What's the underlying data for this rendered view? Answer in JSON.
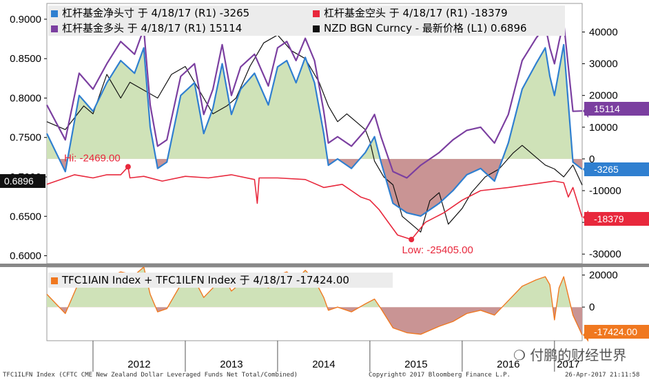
{
  "chart_data": [
    {
      "type": "line",
      "panel": "upper",
      "xlabel": "",
      "x_ticks": [
        "2012",
        "2013",
        "2014",
        "2015",
        "2016",
        "2017"
      ],
      "left_axis": {
        "ylim": [
          0.59,
          0.92
        ],
        "ticks": [
          "0.9000",
          "0.8500",
          "0.8000",
          "0.7500",
          "0.7000",
          "0.6500",
          "0.6000"
        ]
      },
      "right_axis": {
        "ylim": [
          -33000,
          49000
        ],
        "ticks": [
          "40000",
          "30000",
          "20000",
          "10000",
          "0",
          "-10000",
          "-20000",
          "-30000"
        ]
      },
      "legend": [
        "杠杆基金净头寸 于 4/18/17 (R1) -3265",
        "杠杆基金空头 于 4/18/17 (R1)   -18379",
        "杠杆基金多头 于 4/18/17 (R1)    15114",
        "NZD BGN Curncy - 最新价格 (L1) 0.6896"
      ],
      "series": [
        {
          "name": "杠杆基金净头寸",
          "axis": "right",
          "color": "#2f7fd0",
          "x": [
            2011.5,
            2011.7,
            2011.85,
            2012.0,
            2012.15,
            2012.3,
            2012.45,
            2012.55,
            2012.62,
            2012.7,
            2012.8,
            2012.95,
            2013.1,
            2013.2,
            2013.3,
            2013.4,
            2013.5,
            2013.6,
            2013.75,
            2013.9,
            2014.0,
            2014.1,
            2014.2,
            2014.3,
            2014.4,
            2014.5,
            2014.55,
            2014.65,
            2014.8,
            2014.95,
            2015.05,
            2015.12,
            2015.25,
            2015.4,
            2015.55,
            2015.75,
            2015.9,
            2016.05,
            2016.2,
            2016.35,
            2016.5,
            2016.65,
            2016.8,
            2016.9,
            2016.95,
            2017.0,
            2017.05,
            2017.1,
            2017.2,
            2017.3
          ],
          "y": [
            8000,
            -4000,
            20000,
            15000,
            24000,
            31000,
            27000,
            35000,
            10000,
            -3000,
            -1000,
            20000,
            24000,
            8000,
            16000,
            30000,
            14000,
            22000,
            27000,
            17000,
            29000,
            31000,
            24000,
            32000,
            24000,
            8000,
            -2000,
            0,
            -3000,
            2000,
            7000,
            -1000,
            -14000,
            -17000,
            -18000,
            -14000,
            -10000,
            -5000,
            -3000,
            -7000,
            5000,
            22000,
            30000,
            35000,
            26000,
            20000,
            28000,
            36000,
            -1000,
            -3265
          ]
        },
        {
          "name": "杠杆基金空头",
          "axis": "right",
          "color": "#e8283c",
          "x": [
            2011.5,
            2011.8,
            2012.0,
            2012.15,
            2012.3,
            2012.38,
            2012.4,
            2012.55,
            2012.75,
            2013.0,
            2013.25,
            2013.5,
            2013.75,
            2013.78,
            2013.8,
            2014.0,
            2014.3,
            2014.5,
            2014.7,
            2014.9,
            2015.0,
            2015.1,
            2015.2,
            2015.3,
            2015.45,
            2015.6,
            2015.8,
            2016.0,
            2016.2,
            2016.5,
            2016.75,
            2017.0,
            2017.1,
            2017.15,
            2017.2,
            2017.3
          ],
          "y": [
            -8000,
            -5000,
            -6000,
            -5000,
            -5000,
            -2469,
            -6000,
            -5500,
            -7000,
            -5500,
            -6000,
            -5000,
            -6500,
            -14000,
            -6000,
            -6000,
            -6500,
            -9000,
            -8000,
            -12000,
            -13000,
            -16000,
            -20000,
            -24000,
            -25405,
            -20000,
            -17000,
            -13000,
            -10000,
            -9000,
            -8000,
            -7000,
            -7500,
            -12000,
            -9000,
            -18379
          ]
        },
        {
          "name": "杠杆基金多头",
          "axis": "right",
          "color": "#7b3fa0",
          "x": [
            2011.5,
            2011.7,
            2011.85,
            2012.0,
            2012.15,
            2012.3,
            2012.45,
            2012.55,
            2012.62,
            2012.7,
            2012.8,
            2012.95,
            2013.1,
            2013.2,
            2013.3,
            2013.4,
            2013.5,
            2013.6,
            2013.75,
            2013.9,
            2014.0,
            2014.1,
            2014.2,
            2014.3,
            2014.4,
            2014.5,
            2014.55,
            2014.65,
            2014.8,
            2014.95,
            2015.05,
            2015.12,
            2015.25,
            2015.4,
            2015.55,
            2015.75,
            2015.9,
            2016.05,
            2016.2,
            2016.35,
            2016.5,
            2016.65,
            2016.8,
            2016.9,
            2016.95,
            2017.0,
            2017.05,
            2017.1,
            2017.2,
            2017.3
          ],
          "y": [
            17000,
            6000,
            27000,
            22000,
            30000,
            37000,
            33000,
            41000,
            17000,
            4000,
            6000,
            26000,
            30000,
            14000,
            22000,
            36000,
            20000,
            29000,
            33000,
            23000,
            35000,
            37000,
            31000,
            38000,
            31000,
            15000,
            5000,
            7000,
            4000,
            9000,
            14000,
            7000,
            -4000,
            -6000,
            -2000,
            2000,
            6000,
            9000,
            10000,
            5000,
            14000,
            31000,
            38000,
            42000,
            35000,
            30000,
            37000,
            43000,
            15000,
            15114
          ]
        },
        {
          "name": "NZD BGN Curncy",
          "axis": "left",
          "color": "#111111",
          "x": [
            2011.5,
            2011.7,
            2011.9,
            2012.0,
            2012.15,
            2012.3,
            2012.4,
            2012.55,
            2012.7,
            2012.85,
            2013.0,
            2013.15,
            2013.3,
            2013.45,
            2013.55,
            2013.7,
            2013.85,
            2014.0,
            2014.15,
            2014.3,
            2014.45,
            2014.55,
            2014.65,
            2014.75,
            2014.85,
            2014.95,
            2015.0,
            2015.05,
            2015.15,
            2015.25,
            2015.35,
            2015.45,
            2015.55,
            2015.65,
            2015.75,
            2015.85,
            2016.0,
            2016.1,
            2016.25,
            2016.4,
            2016.55,
            2016.65,
            2016.8,
            2016.9,
            2017.0,
            2017.1,
            2017.2,
            2017.3
          ],
          "y": [
            0.77,
            0.76,
            0.79,
            0.78,
            0.83,
            0.8,
            0.82,
            0.81,
            0.8,
            0.83,
            0.84,
            0.81,
            0.78,
            0.79,
            0.8,
            0.84,
            0.87,
            0.88,
            0.86,
            0.85,
            0.82,
            0.79,
            0.77,
            0.78,
            0.77,
            0.76,
            0.745,
            0.72,
            0.7,
            0.69,
            0.65,
            0.64,
            0.63,
            0.67,
            0.68,
            0.64,
            0.66,
            0.68,
            0.7,
            0.71,
            0.73,
            0.74,
            0.725,
            0.715,
            0.71,
            0.7,
            0.715,
            0.6896
          ]
        }
      ],
      "annotations": [
        {
          "text": "Hi: -2469.00",
          "x": 2012.38,
          "y": -2469,
          "color": "#e8283c"
        },
        {
          "text": "Low: -25405.00",
          "x": 2015.45,
          "y": -25405,
          "color": "#e8283c"
        }
      ],
      "last_value_tags": [
        {
          "text": "15114",
          "color": "#7b3fa0",
          "axis": "right",
          "y": 15114
        },
        {
          "text": "-3265",
          "color": "#2f7fd0",
          "axis": "right",
          "y": -3265
        },
        {
          "text": "-18379",
          "color": "#e8283c",
          "axis": "right",
          "y": -18379
        },
        {
          "text": "0.6896",
          "color": "#111111",
          "axis": "left",
          "y": 0.6896
        }
      ]
    },
    {
      "type": "area",
      "panel": "lower",
      "legend": [
        "TFC1IAIN Index + TFC1ILFN Index 于 4/18/17 -17424.00"
      ],
      "right_axis": {
        "ylim": [
          -21000,
          25000
        ],
        "ticks": [
          "20000",
          "0"
        ]
      },
      "series": [
        {
          "name": "TFC1IAIN Index + TFC1ILFN Index",
          "color": "#f07820",
          "x": [
            2011.5,
            2011.7,
            2011.85,
            2012.0,
            2012.15,
            2012.3,
            2012.45,
            2012.55,
            2012.62,
            2012.7,
            2012.8,
            2012.95,
            2013.1,
            2013.2,
            2013.3,
            2013.4,
            2013.5,
            2013.6,
            2013.75,
            2013.9,
            2014.0,
            2014.1,
            2014.2,
            2014.3,
            2014.4,
            2014.5,
            2014.55,
            2014.65,
            2014.8,
            2014.95,
            2015.05,
            2015.12,
            2015.25,
            2015.4,
            2015.55,
            2015.75,
            2015.9,
            2016.05,
            2016.2,
            2016.35,
            2016.5,
            2016.65,
            2016.8,
            2016.9,
            2016.95,
            2017.0,
            2017.05,
            2017.1,
            2017.2,
            2017.3
          ],
          "y": [
            8000,
            -4000,
            16000,
            13000,
            18000,
            22000,
            20000,
            25000,
            8000,
            -3000,
            -1000,
            14000,
            17000,
            6000,
            12000,
            21000,
            10000,
            15000,
            19000,
            12000,
            20000,
            22000,
            17000,
            23000,
            17000,
            6000,
            -2000,
            0,
            -3000,
            2000,
            5000,
            -1000,
            -13000,
            -16000,
            -17000,
            -12000,
            -9000,
            -4000,
            -2000,
            -5000,
            4000,
            13000,
            17000,
            19000,
            14000,
            -8000,
            12000,
            19000,
            -5000,
            -17424
          ]
        }
      ],
      "last_value_tags": [
        {
          "text": "-17424.00",
          "color": "#f07820",
          "y": -17424
        }
      ]
    }
  ],
  "footer": {
    "left": "TFC1ILFN Index (CFTC CME New Zealand Dollar Leveraged Funds Net Total/Combined)",
    "center": "Copyright© 2017 Bloomberg Finance L.P.",
    "right": "26-Apr-2017 21:11:58"
  },
  "watermark": "付鹏的财经世界",
  "colors": {
    "fill_positive": "#cfe2b8",
    "fill_negative": "#c99494",
    "background": "#ffffff"
  }
}
